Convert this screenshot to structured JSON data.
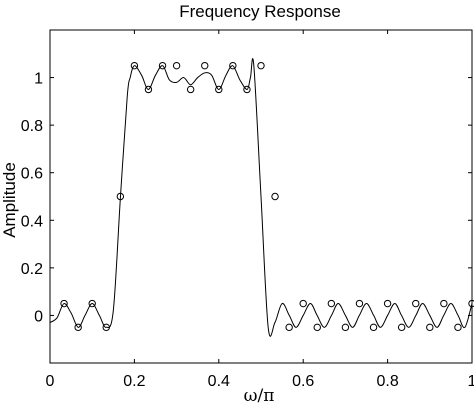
{
  "chart_data": {
    "type": "line",
    "title": "Frequency Response",
    "xlabel": "ω/π",
    "ylabel": "Amplitude",
    "xlim": [
      0,
      1
    ],
    "ylim": [
      -0.2,
      1.2
    ],
    "grid": false,
    "legend": "none",
    "x_ticks": [
      0,
      0.2,
      0.4,
      0.6,
      0.8,
      1
    ],
    "x_tick_labels": [
      "0",
      "0.2",
      "0.4",
      "0.6",
      "0.8",
      "1"
    ],
    "y_ticks": [
      0,
      0.2,
      0.4,
      0.6,
      0.8,
      1
    ],
    "y_tick_labels": [
      "0",
      "0.2",
      "0.4",
      "0.6",
      "0.8",
      "1"
    ],
    "series": [
      {
        "style": "line",
        "color": "#000000",
        "x": [
          0,
          0.0167,
          0.033,
          0.05,
          0.067,
          0.083,
          0.1,
          0.117,
          0.133,
          0.15,
          0.167,
          0.183,
          0.19,
          0.2,
          0.217,
          0.233,
          0.25,
          0.267,
          0.283,
          0.3,
          0.317,
          0.333,
          0.35,
          0.367,
          0.383,
          0.4,
          0.417,
          0.433,
          0.45,
          0.467,
          0.475,
          0.483,
          0.5,
          0.517,
          0.533,
          0.55,
          0.567,
          0.583,
          0.6,
          0.617,
          0.633,
          0.65,
          0.667,
          0.683,
          0.7,
          0.717,
          0.733,
          0.75,
          0.767,
          0.783,
          0.8,
          0.817,
          0.833,
          0.85,
          0.867,
          0.883,
          0.9,
          0.917,
          0.933,
          0.95,
          0.967,
          0.983,
          1
        ],
        "y": [
          -0.03,
          -0.01,
          0.05,
          0.01,
          -0.05,
          0.0,
          0.05,
          0.0,
          -0.05,
          0.02,
          0.5,
          0.92,
          1.0,
          1.05,
          1.01,
          0.95,
          1.01,
          1.05,
          0.99,
          0.98,
          1.0,
          0.97,
          1.0,
          1.02,
          1.01,
          0.95,
          1.01,
          1.05,
          0.99,
          0.95,
          1.0,
          1.05,
          0.5,
          -0.05,
          -0.03,
          0.05,
          0.0,
          -0.05,
          0.0,
          0.05,
          0.0,
          -0.05,
          0.0,
          0.05,
          0.0,
          -0.05,
          0.0,
          0.05,
          0.0,
          -0.05,
          0.0,
          0.05,
          0.0,
          -0.05,
          0.0,
          0.05,
          0.0,
          -0.05,
          0.0,
          0.05,
          0.0,
          -0.05,
          0.05
        ]
      },
      {
        "style": "markers",
        "marker": "circle",
        "color": "#000000",
        "x": [
          0.0333,
          0.0667,
          0.1,
          0.1333,
          0.1667,
          0.2,
          0.2333,
          0.2667,
          0.3,
          0.3333,
          0.3667,
          0.4,
          0.4333,
          0.4667,
          0.5,
          0.5333,
          0.5667,
          0.6,
          0.6333,
          0.6667,
          0.7,
          0.7333,
          0.7667,
          0.8,
          0.8333,
          0.8667,
          0.9,
          0.9333,
          0.9667,
          1.0
        ],
        "y": [
          0.05,
          -0.05,
          0.05,
          -0.05,
          0.5,
          1.05,
          0.95,
          1.05,
          1.05,
          0.95,
          1.05,
          0.95,
          1.05,
          0.95,
          1.05,
          0.5,
          -0.05,
          0.05,
          -0.05,
          0.05,
          -0.05,
          0.05,
          -0.05,
          0.05,
          -0.05,
          0.05,
          -0.05,
          0.05,
          -0.05,
          0.05
        ]
      }
    ]
  }
}
